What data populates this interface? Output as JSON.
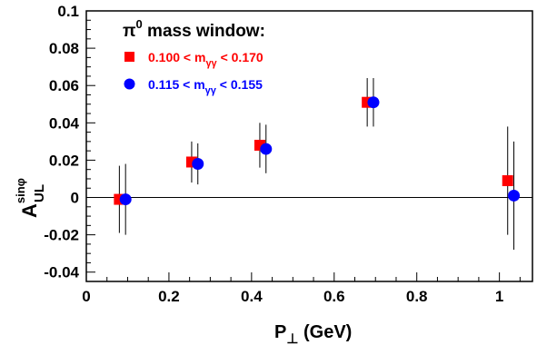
{
  "chart_data": {
    "type": "scatter",
    "xlabel": {
      "main": "P",
      "sub": "⊥",
      "unit": " (GeV)"
    },
    "ylabel": {
      "main": "A",
      "sup": "sinφ",
      "sub": "UL"
    },
    "xlim": [
      0,
      1.08
    ],
    "ylim": [
      -0.045,
      0.1
    ],
    "x_ticks": [
      0,
      0.2,
      0.4,
      0.6,
      0.8,
      1
    ],
    "x_tick_labels": [
      "0",
      "0.2",
      "0.4",
      "0.6",
      "0.8",
      "1"
    ],
    "y_ticks": [
      0.1,
      0.08,
      0.06,
      0.04,
      0.02,
      0,
      -0.02,
      -0.04
    ],
    "y_tick_labels": [
      "0.1",
      "0.08",
      "0.06",
      "0.04",
      "0.02",
      "0",
      "-0.02",
      "-0.04"
    ],
    "zero_line": true,
    "legend_title": {
      "main": "π",
      "sup": "0",
      "rest": " mass window:"
    },
    "legend_position": "top-left",
    "series": [
      {
        "name": "0.100 < m_γγ < 0.170",
        "label_prefix": "0.100 < m",
        "label_sub": "γγ",
        "label_suffix": " < 0.170",
        "marker": "square",
        "color": "#ff0000",
        "x": [
          0.08,
          0.255,
          0.42,
          0.68,
          1.02
        ],
        "y": [
          -0.001,
          0.019,
          0.028,
          0.051,
          0.009
        ],
        "err": [
          0.018,
          0.011,
          0.012,
          0.013,
          0.029
        ]
      },
      {
        "name": "0.115 < m_γγ < 0.155",
        "label_prefix": "0.115 < m",
        "label_sub": "γγ",
        "label_suffix": " < 0.155",
        "marker": "circle",
        "color": "#0000ff",
        "x": [
          0.095,
          0.27,
          0.435,
          0.695,
          1.035
        ],
        "y": [
          -0.001,
          0.018,
          0.026,
          0.051,
          0.001
        ],
        "err": [
          0.019,
          0.011,
          0.013,
          0.013,
          0.029
        ]
      }
    ]
  }
}
